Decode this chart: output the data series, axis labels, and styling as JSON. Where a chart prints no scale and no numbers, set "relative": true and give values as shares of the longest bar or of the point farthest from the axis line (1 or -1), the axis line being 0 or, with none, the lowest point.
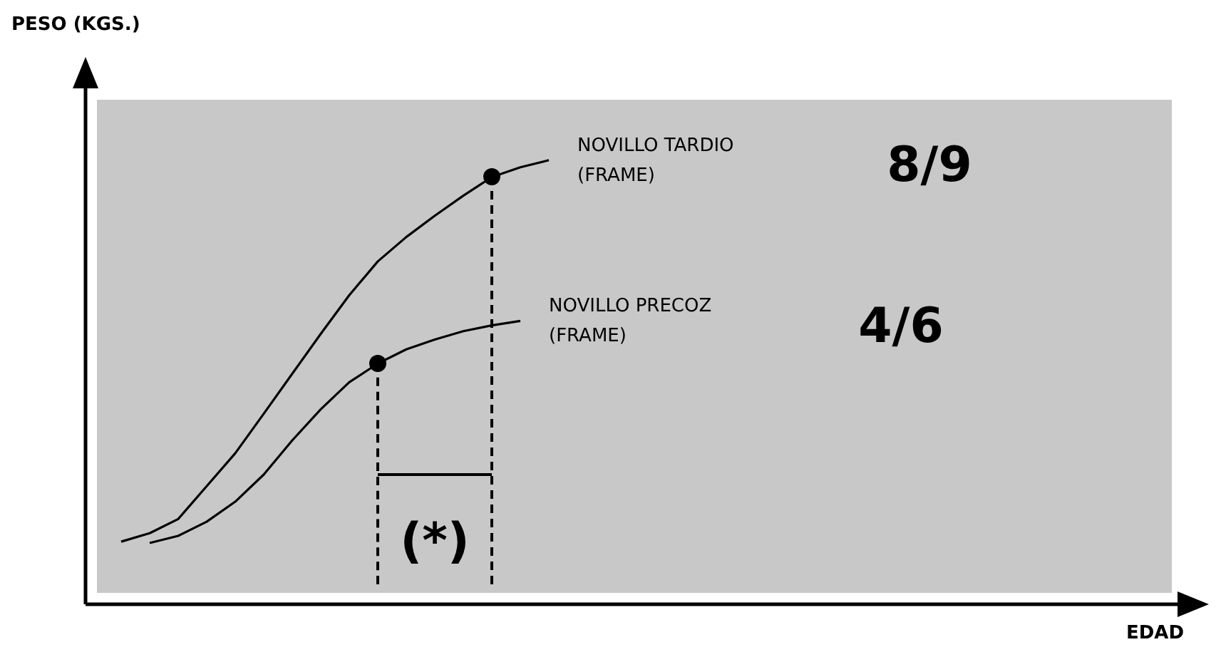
{
  "chart_data": {
    "type": "line",
    "relative": true,
    "xlabel": "EDAD",
    "tick_labels": false,
    "grid": false,
    "legend": false,
    "marker": "none",
    "line_style": "solid",
    "categories": [
      null,
      null,
      null,
      null,
      null,
      null,
      null,
      null,
      null,
      null,
      null,
      null,
      null,
      null,
      null,
      null,
      null,
      null,
      null,
      null,
      null,
      null,
      null,
      null,
      null,
      null,
      null,
      null,
      null,
      null,
      null,
      null,
      null,
      null,
      null,
      null,
      null,
      null,
      null
    ],
    "series": [
      {
        "name": "NOVILLO TARDIO (FRAME)",
        "color": "#000000",
        "values": [
          null,
          0.141,
          0.16,
          0.192,
          0.266,
          0.34,
          0.429,
          0.519,
          0.609,
          0.696,
          0.772,
          0.827,
          0.875,
          0.92,
          0.962,
          0.984,
          1,
          null,
          null,
          null,
          null,
          null,
          null,
          null,
          null,
          null,
          null,
          null,
          null,
          null,
          null,
          null,
          null,
          null,
          null,
          null,
          null,
          null,
          null
        ]
      },
      {
        "name": "NOVILLO PRECOZ (FRAME)",
        "color": "#000000",
        "values": [
          null,
          null,
          0.138,
          0.154,
          0.186,
          0.231,
          0.292,
          0.369,
          0.439,
          0.5,
          0.542,
          0.574,
          0.596,
          0.615,
          0.628,
          0.638,
          null,
          null,
          null,
          null,
          null,
          null,
          null,
          null,
          null,
          null,
          null,
          null,
          null,
          null,
          null,
          null,
          null,
          null,
          null,
          null,
          null,
          null,
          null
        ]
      }
    ],
    "annotations": [
      "8/9",
      "4/6",
      "(*)",
      "PESO (KGS.)"
    ]
  }
}
